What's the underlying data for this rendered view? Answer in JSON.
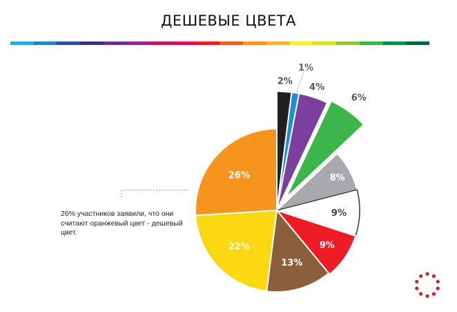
{
  "page": {
    "title": "ДЕШЕВЫЕ ЦВЕТА",
    "annotation": "26% участников заявили, что они считают оранжевый цвет - дешевый цвет.",
    "color_strip": [
      "#29a9e0",
      "#2b7fc3",
      "#2d4f9d",
      "#3a2d83",
      "#6a2d8f",
      "#93278f",
      "#c2185b",
      "#e30b5c",
      "#ec1c24",
      "#f15a24",
      "#f7931e",
      "#fbb03b",
      "#fcee21",
      "#d9e021",
      "#8cc63f",
      "#39b54a",
      "#009245",
      "#006837"
    ]
  },
  "chart_data": {
    "type": "pie",
    "title": "ДЕШЕВЫЕ ЦВЕТА",
    "slices": [
      {
        "label": "2%",
        "value": 2,
        "color": "#231f20"
      },
      {
        "label": "1%",
        "value": 1,
        "color": "#1b8fd3"
      },
      {
        "label": "4%",
        "value": 4,
        "color": "#7b3f9e"
      },
      {
        "label": "6%",
        "value": 6,
        "color": "#3cb54a"
      },
      {
        "label": "8%",
        "value": 8,
        "color": "#a7a9ac"
      },
      {
        "label": "9%",
        "value": 9,
        "color": "#ffffff"
      },
      {
        "label": "9%",
        "value": 9,
        "color": "#ed1c24"
      },
      {
        "label": "13%",
        "value": 13,
        "color": "#8b5e3c"
      },
      {
        "label": "22%",
        "value": 22,
        "color": "#fbd811"
      },
      {
        "label": "26%",
        "value": 26,
        "color": "#f7941d"
      }
    ],
    "label_colors": {
      "inside": "#ffffff",
      "outside": "#555555",
      "outside_light": "#666666"
    }
  }
}
